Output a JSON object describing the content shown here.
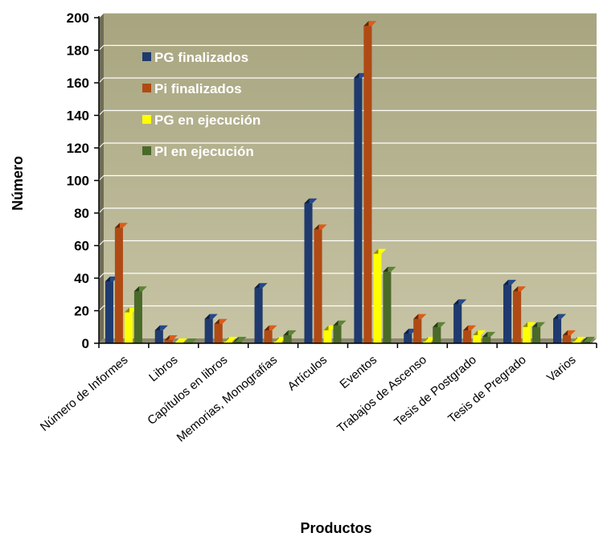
{
  "chart_data": {
    "type": "bar",
    "title": "",
    "xlabel": "Productos",
    "ylabel": "Número",
    "ylim": [
      0,
      200
    ],
    "yticks": [
      0,
      20,
      40,
      60,
      80,
      100,
      120,
      140,
      160,
      180,
      200
    ],
    "grid": true,
    "legend_position": "top-left",
    "plot_background": "#b6b391",
    "categories": [
      "Número de Informes",
      "Libros",
      "Capítulos en libros",
      "Memorias, Monografías",
      "Artículos",
      "Eventos",
      "Trabajos de Ascenso",
      "Tesis de Postgrado",
      "Tesis de Pregrado",
      "Varios"
    ],
    "series": [
      {
        "name": "PG finalizados",
        "color": "#1f3a6e",
        "values": [
          38,
          8,
          15,
          34,
          86,
          163,
          6,
          24,
          36,
          15
        ]
      },
      {
        "name": "Pi finalizados",
        "color": "#b04a14",
        "values": [
          71,
          2,
          12,
          8,
          70,
          195,
          15,
          8,
          32,
          5
        ]
      },
      {
        "name": "PG en ejecución",
        "color": "#ffff00",
        "values": [
          19,
          0,
          1,
          1,
          8,
          55,
          1,
          5,
          10,
          1
        ]
      },
      {
        "name": "PI en ejecución",
        "color": "#4a6a2a",
        "values": [
          32,
          0,
          1,
          5,
          11,
          44,
          10,
          4,
          10,
          1
        ]
      }
    ]
  }
}
